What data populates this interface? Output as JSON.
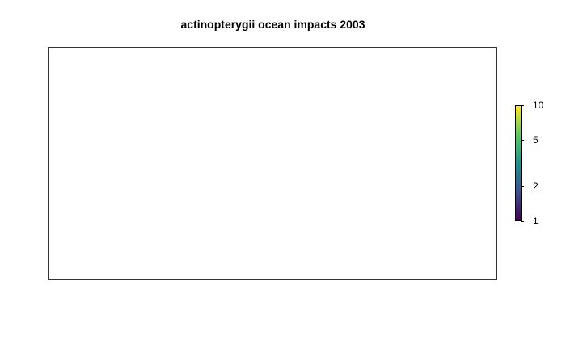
{
  "title": "actinopterygii ocean impacts 2003",
  "map": {
    "features": []
  },
  "legend": {
    "scale": "log",
    "range": [
      1,
      10
    ],
    "ticks": [
      {
        "label": "10",
        "value": 10
      },
      {
        "label": "5",
        "value": 5
      },
      {
        "label": "2",
        "value": 2
      },
      {
        "label": "1",
        "value": 1
      }
    ],
    "colors": [
      "#440154",
      "#3b528b",
      "#21908c",
      "#5dc863",
      "#fde725"
    ]
  }
}
